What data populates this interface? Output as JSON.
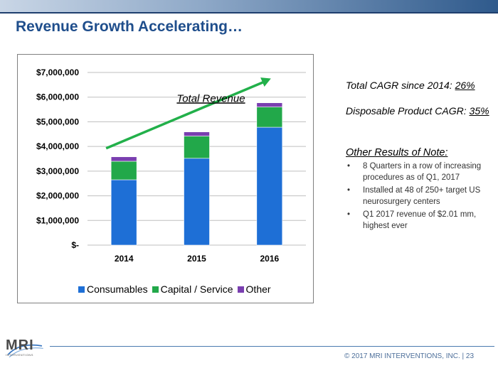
{
  "title": "Revenue Growth Accelerating…",
  "chart_data": {
    "type": "bar",
    "stacked": true,
    "categories": [
      "2014",
      "2015",
      "2016"
    ],
    "series": [
      {
        "name": "Consumables",
        "color": "#1e6fd6",
        "values": [
          2650000,
          3520000,
          4780000
        ]
      },
      {
        "name": "Capital / Service",
        "color": "#22a84a",
        "values": [
          750000,
          900000,
          820000
        ]
      },
      {
        "name": "Other",
        "color": "#7a3fb0",
        "values": [
          180000,
          170000,
          170000
        ]
      }
    ],
    "ylim": [
      0,
      7000000
    ],
    "y_ticks": [
      {
        "value": 7000000,
        "label": "$7,000,000"
      },
      {
        "value": 6000000,
        "label": "$6,000,000"
      },
      {
        "value": 5000000,
        "label": "$5,000,000"
      },
      {
        "value": 4000000,
        "label": "$4,000,000"
      },
      {
        "value": 3000000,
        "label": "$3,000,000"
      },
      {
        "value": 2000000,
        "label": "$2,000,000"
      },
      {
        "value": 1000000,
        "label": "$1,000,000"
      },
      {
        "value": 0,
        "label": "$-"
      }
    ],
    "annotation": "Total Revenue",
    "trend_arrow_color": "#22b04a",
    "legend_position": "bottom",
    "grid": true
  },
  "side": {
    "cagr_total_label": "Total CAGR since 2014: ",
    "cagr_total_value": "26%",
    "cagr_disposable_label": "Disposable Product CAGR: ",
    "cagr_disposable_value": "35%",
    "other_title": "Other Results of Note:",
    "bullets": [
      "8 Quarters in a row  of increasing procedures as of Q1, 2017",
      "Installed at 48 of 250+ target US neurosurgery centers",
      "Q1 2017 revenue of $2.01 mm, highest ever"
    ]
  },
  "logo": {
    "text": "MRI",
    "sub": "INTERVENTIONS"
  },
  "footer": "© 2017 MRI INTERVENTIONS, INC.   |   23"
}
